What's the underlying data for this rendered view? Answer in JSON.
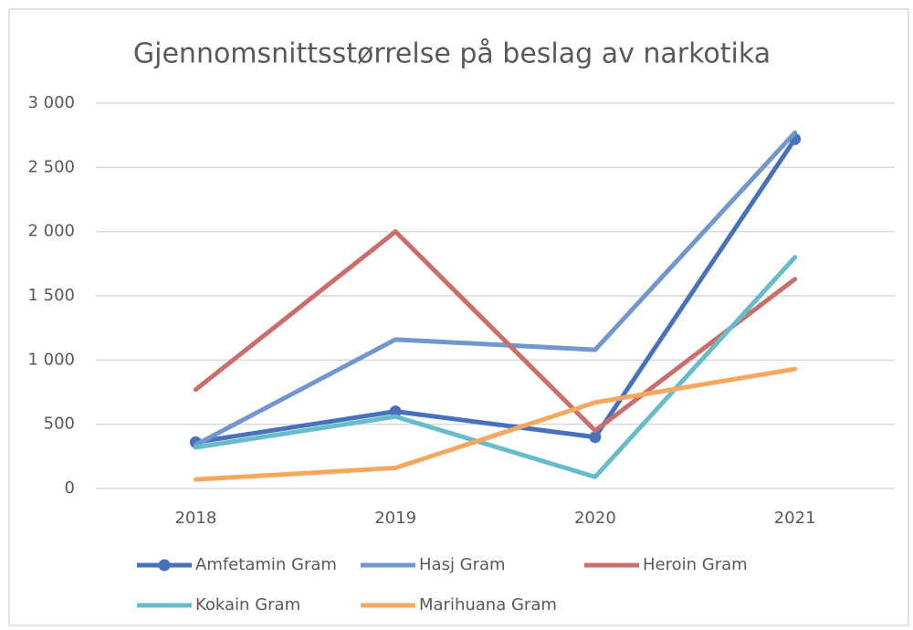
{
  "chart_data": {
    "type": "line",
    "title": "Gjennomsnittsstørrelse på beslag av narkotika",
    "categories": [
      "2018",
      "2019",
      "2020",
      "2021"
    ],
    "series": [
      {
        "name": "Amfetamin Gram",
        "color": "#4672bd",
        "marker": "circle",
        "values": [
          360,
          600,
          400,
          2720
        ]
      },
      {
        "name": "Hasj Gram",
        "color": "#7197cf",
        "values": [
          340,
          1160,
          1080,
          2770
        ]
      },
      {
        "name": "Heroin Gram",
        "color": "#cd6d6b",
        "values": [
          770,
          2000,
          450,
          1630
        ]
      },
      {
        "name": "Kokain Gram",
        "color": "#65bccb",
        "values": [
          320,
          560,
          90,
          1800
        ]
      },
      {
        "name": "Marihuana Gram",
        "color": "#f8a85e",
        "values": [
          70,
          160,
          670,
          930
        ]
      }
    ],
    "ylim": [
      0,
      3000
    ],
    "yticks": [
      0,
      500,
      {
        "value": 1000,
        "label": "1 000"
      },
      {
        "value": 1500,
        "label": "1 500"
      },
      {
        "value": 2000,
        "label": "2 000"
      },
      {
        "value": 2500,
        "label": "2 500"
      },
      {
        "value": 3000,
        "label": "3 000"
      }
    ],
    "grid": true,
    "legend": "bottom"
  }
}
